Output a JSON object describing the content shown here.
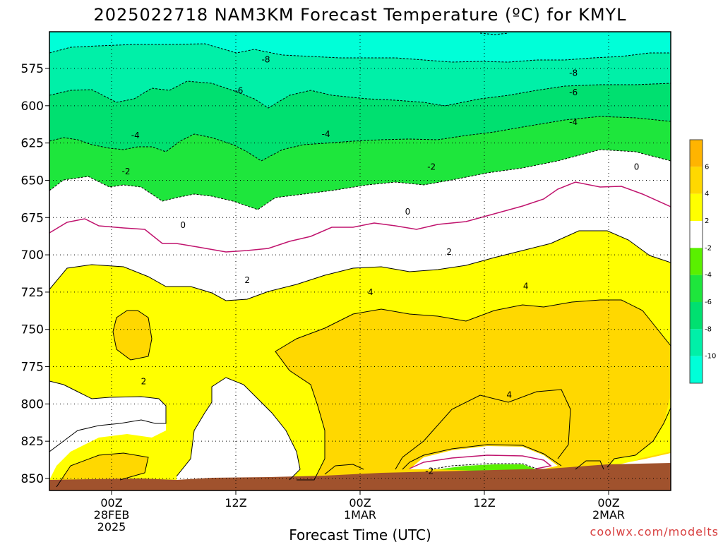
{
  "chart_data": {
    "type": "heatmap",
    "title": "2025022718 NAM3KM Forecast Temperature (ºC) for KMYL",
    "xlabel": "Forecast Time (UTC)",
    "ylabel": "",
    "credit": "coolwx.com/modelts",
    "y_axis": {
      "unit": "hPa",
      "inverted": true,
      "ticks": [
        575,
        600,
        625,
        650,
        675,
        700,
        725,
        750,
        775,
        800,
        825,
        850
      ]
    },
    "x_axis": {
      "ticks": [
        {
          "hour": 6,
          "lines": [
            "00Z",
            "28FEB",
            "2025"
          ]
        },
        {
          "hour": 18,
          "lines": [
            "12Z"
          ]
        },
        {
          "hour": 30,
          "lines": [
            "00Z",
            "1MAR"
          ]
        },
        {
          "hour": 42,
          "lines": [
            "12Z"
          ]
        },
        {
          "hour": 54,
          "lines": [
            "00Z",
            "2MAR"
          ]
        }
      ],
      "range_hours": [
        0,
        60
      ]
    },
    "grid": true,
    "colorbar": {
      "bands": [
        {
          "from": -12,
          "to": -10,
          "color": "#00ffd8"
        },
        {
          "from": -10,
          "to": -8,
          "color": "#00f0a8"
        },
        {
          "from": -8,
          "to": -6,
          "color": "#00e070"
        },
        {
          "from": -6,
          "to": -4,
          "color": "#1ee63c"
        },
        {
          "from": -4,
          "to": -2,
          "color": "#5af000"
        },
        {
          "from": -2,
          "to": 2,
          "color": "#ffffff"
        },
        {
          "from": 2,
          "to": 4,
          "color": "#ffff00"
        },
        {
          "from": 4,
          "to": 6,
          "color": "#ffd800"
        },
        {
          "from": 6,
          "to": 8,
          "color": "#ffb400"
        }
      ],
      "labels": [
        6,
        4,
        2,
        -2,
        -4,
        -6,
        -8,
        -10
      ]
    },
    "contour_labels": [
      {
        "value": "-8",
        "hour": 20.9,
        "hPa": 569
      },
      {
        "value": "-8",
        "hour": 50.6,
        "hPa": 578
      },
      {
        "value": "-6",
        "hour": 18.3,
        "hPa": 590
      },
      {
        "value": "-6",
        "hour": 50.6,
        "hPa": 591
      },
      {
        "value": "-4",
        "hour": 50.6,
        "hPa": 611
      },
      {
        "value": "-4",
        "hour": 8.3,
        "hPa": 620
      },
      {
        "value": "-4",
        "hour": 26.7,
        "hPa": 619
      },
      {
        "value": "-2",
        "hour": 7.4,
        "hPa": 644
      },
      {
        "value": "-2",
        "hour": 36.9,
        "hPa": 641
      },
      {
        "value": "0",
        "hour": 56.7,
        "hPa": 641
      },
      {
        "value": "0",
        "hour": 34.6,
        "hPa": 671
      },
      {
        "value": "0",
        "hour": 12.9,
        "hPa": 680
      },
      {
        "value": "2",
        "hour": 38.6,
        "hPa": 698
      },
      {
        "value": "2",
        "hour": 19.1,
        "hPa": 717
      },
      {
        "value": "4",
        "hour": 46.0,
        "hPa": 721
      },
      {
        "value": "4",
        "hour": 31.0,
        "hPa": 725
      },
      {
        "value": "2",
        "hour": 9.1,
        "hPa": 785
      },
      {
        "value": "4",
        "hour": 44.4,
        "hPa": 794
      },
      {
        "value": "-2",
        "hour": 36.7,
        "hPa": 845
      }
    ]
  },
  "colors": {
    "brown_ground": "#a0522d",
    "zero_isotherm": "#c0146e",
    "contour_line": "#000000",
    "credit": "#d84040"
  }
}
